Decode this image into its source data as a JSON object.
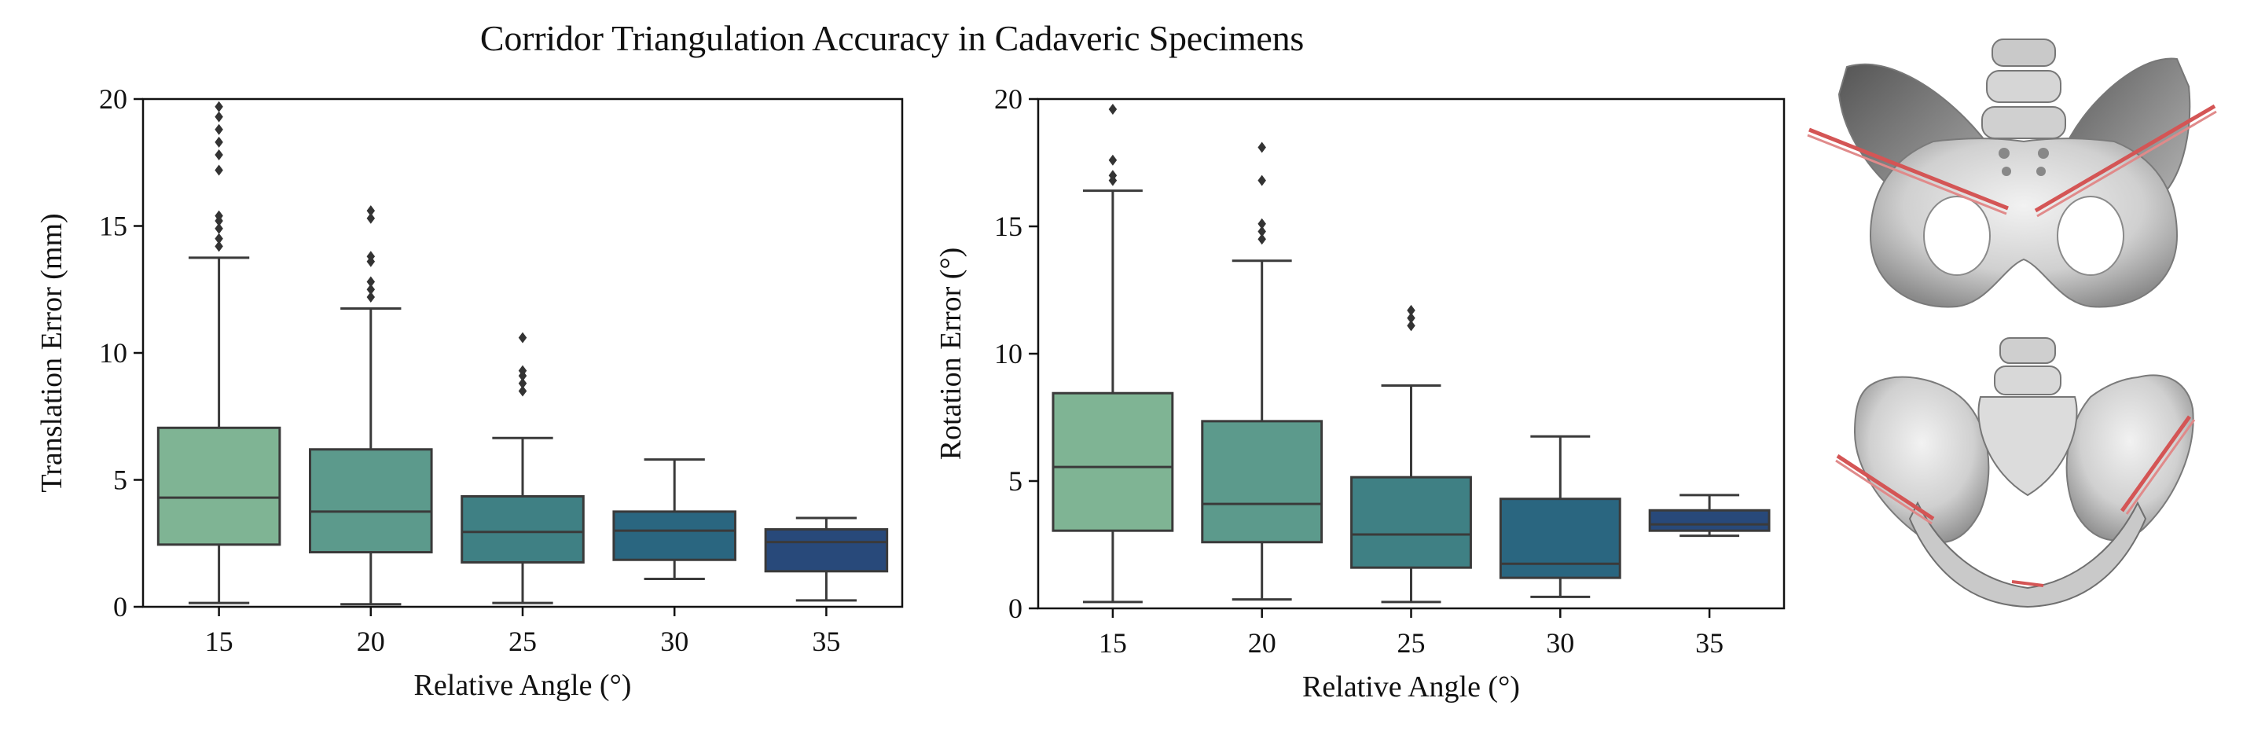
{
  "figure": {
    "title": "Corridor Triangulation Accuracy in Cadaveric Specimens"
  },
  "colors": {
    "box_fill": [
      "#7fb494",
      "#5c9a8c",
      "#3f8084",
      "#2a6680",
      "#28497a"
    ],
    "box_edge": "#3a3a3a",
    "wire": "#d45555",
    "bone": "#d4d4d4"
  },
  "chart_data": [
    {
      "type": "box",
      "xlabel": "Relative Angle (°)",
      "ylabel": "Translation Error (mm)",
      "ylim": [
        0,
        20
      ],
      "yticks": [
        0,
        5,
        10,
        15,
        20
      ],
      "grid": false,
      "categories": [
        "15",
        "20",
        "25",
        "30",
        "35"
      ],
      "boxes": [
        {
          "whisker_low": 0.15,
          "q1": 2.45,
          "median": 4.3,
          "q3": 7.05,
          "whisker_high": 13.75,
          "outliers": [
            14.2,
            14.5,
            14.9,
            15.2,
            15.4,
            17.2,
            17.8,
            18.3,
            18.8,
            19.3,
            19.7
          ]
        },
        {
          "whisker_low": 0.1,
          "q1": 2.15,
          "median": 3.75,
          "q3": 6.2,
          "whisker_high": 11.75,
          "outliers": [
            12.2,
            12.5,
            12.8,
            13.6,
            13.8,
            15.3,
            15.6
          ]
        },
        {
          "whisker_low": 0.15,
          "q1": 1.75,
          "median": 2.95,
          "q3": 4.35,
          "whisker_high": 6.65,
          "outliers": [
            8.5,
            8.8,
            9.1,
            9.3,
            10.6
          ]
        },
        {
          "whisker_low": 1.1,
          "q1": 1.85,
          "median": 3.0,
          "q3": 3.75,
          "whisker_high": 5.8,
          "outliers": []
        },
        {
          "whisker_low": 0.25,
          "q1": 1.4,
          "median": 2.55,
          "q3": 3.05,
          "whisker_high": 3.5,
          "outliers": []
        }
      ]
    },
    {
      "type": "box",
      "xlabel": "Relative Angle (°)",
      "ylabel": "Rotation Error (°)",
      "ylim": [
        0,
        20
      ],
      "yticks": [
        0,
        5,
        10,
        15,
        20
      ],
      "grid": false,
      "categories": [
        "15",
        "20",
        "25",
        "30",
        "35"
      ],
      "boxes": [
        {
          "whisker_low": 0.25,
          "q1": 3.05,
          "median": 5.55,
          "q3": 8.45,
          "whisker_high": 16.4,
          "outliers": [
            16.8,
            17.0,
            17.6,
            19.6
          ]
        },
        {
          "whisker_low": 0.35,
          "q1": 2.6,
          "median": 4.1,
          "q3": 7.35,
          "whisker_high": 13.65,
          "outliers": [
            14.5,
            14.8,
            15.1,
            16.8,
            18.1
          ]
        },
        {
          "whisker_low": 0.25,
          "q1": 1.6,
          "median": 2.9,
          "q3": 5.15,
          "whisker_high": 8.75,
          "outliers": [
            11.1,
            11.4,
            11.7
          ]
        },
        {
          "whisker_low": 0.45,
          "q1": 1.2,
          "median": 1.75,
          "q3": 4.3,
          "whisker_high": 6.75,
          "outliers": []
        },
        {
          "whisker_low": 2.85,
          "q1": 3.05,
          "median": 3.3,
          "q3": 3.85,
          "whisker_high": 4.45,
          "outliers": []
        }
      ]
    }
  ]
}
